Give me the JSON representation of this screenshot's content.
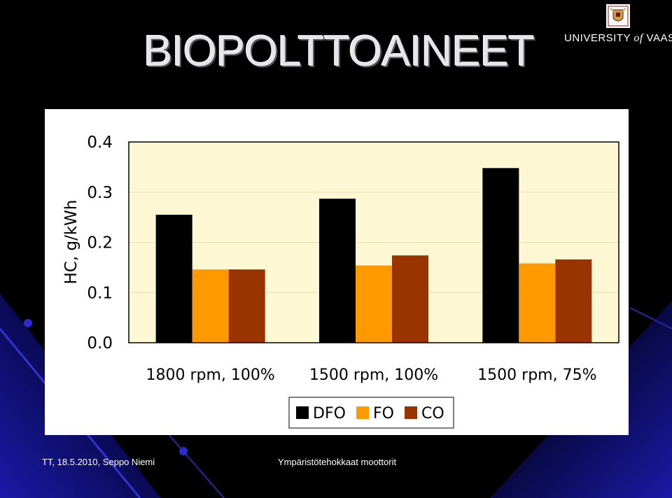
{
  "slide": {
    "title": "BIOPOLTTOAINEET",
    "logo_university": "UNIVERSITY",
    "logo_of": "of",
    "logo_place": "VAASA",
    "footer_left": "TT, 18.5.2010, Seppo Niemi",
    "footer_right": "Ympäristötehokkaat moottorit"
  },
  "colors": {
    "background": "#000000",
    "plot_area": "#fdf7d3",
    "DFO": "#000000",
    "FO": "#ff9900",
    "CO": "#993300"
  },
  "chart_data": {
    "type": "bar",
    "ylabel": "HC, g/kWh",
    "xlabel": "",
    "ylim": [
      0,
      0.4
    ],
    "yticks": [
      "0.0",
      "0.1",
      "0.2",
      "0.3",
      "0.4"
    ],
    "categories": [
      "1800 rpm, 100%",
      "1500 rpm, 100%",
      "1500 rpm, 75%"
    ],
    "series": [
      {
        "name": "DFO",
        "color": "#000000",
        "values": [
          0.255,
          0.287,
          0.348
        ]
      },
      {
        "name": "FO",
        "color": "#ff9900",
        "values": [
          0.146,
          0.154,
          0.158
        ]
      },
      {
        "name": "CO",
        "color": "#993300",
        "values": [
          0.146,
          0.174,
          0.166
        ]
      }
    ],
    "legend_position": "bottom",
    "grid": true
  }
}
